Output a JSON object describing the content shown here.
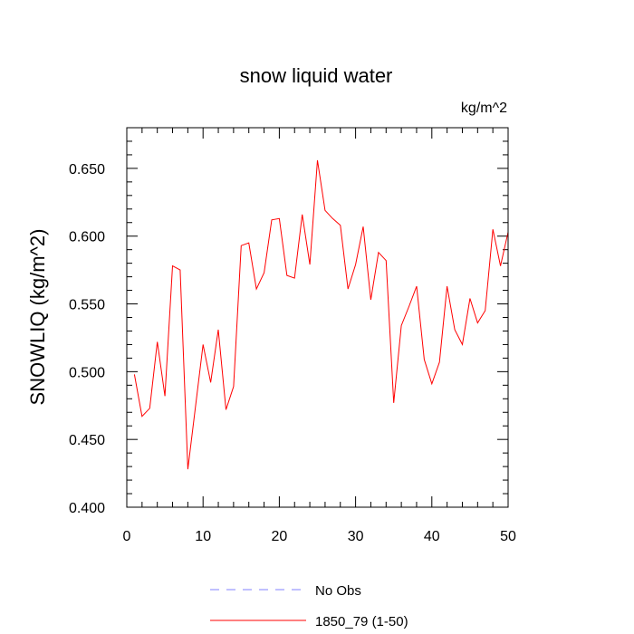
{
  "chart_data": {
    "type": "line",
    "title": "snow liquid water",
    "units": "kg/m^2",
    "ylabel": "SNOWLIQ  (kg/m^2)",
    "xlabel": "",
    "xlim": [
      0,
      50
    ],
    "ylim": [
      0.4,
      0.68
    ],
    "xticks": [
      0,
      10,
      20,
      30,
      40,
      50
    ],
    "xtick_labels": [
      "0",
      "10",
      "20",
      "30",
      "40",
      "50"
    ],
    "yticks": [
      0.4,
      0.45,
      0.5,
      0.55,
      0.6,
      0.65
    ],
    "ytick_labels": [
      "0.400",
      "0.450",
      "0.500",
      "0.550",
      "0.600",
      "0.650"
    ],
    "grid": false,
    "legend_position": "bottom-center",
    "legend": [
      {
        "label": "No Obs",
        "color": "#8080ff",
        "style": "dashed"
      },
      {
        "label": "1850_79 (1-50)",
        "color": "#ff0000",
        "style": "solid"
      }
    ],
    "series": [
      {
        "name": "1850_79 (1-50)",
        "color": "#ff0000",
        "x": [
          1,
          2,
          3,
          4,
          5,
          6,
          7,
          8,
          9,
          10,
          11,
          12,
          13,
          14,
          15,
          16,
          17,
          18,
          19,
          20,
          21,
          22,
          23,
          24,
          25,
          26,
          27,
          28,
          29,
          30,
          31,
          32,
          33,
          34,
          35,
          36,
          37,
          38,
          39,
          40,
          41,
          42,
          43,
          44,
          45,
          46,
          47,
          48,
          49,
          50
        ],
        "y": [
          0.498,
          0.467,
          0.473,
          0.522,
          0.482,
          0.578,
          0.575,
          0.428,
          0.474,
          0.52,
          0.492,
          0.531,
          0.472,
          0.489,
          0.593,
          0.595,
          0.561,
          0.573,
          0.612,
          0.613,
          0.571,
          0.569,
          0.616,
          0.579,
          0.656,
          0.619,
          0.613,
          0.608,
          0.561,
          0.579,
          0.607,
          0.553,
          0.588,
          0.582,
          0.477,
          0.534,
          0.548,
          0.563,
          0.509,
          0.491,
          0.507,
          0.563,
          0.531,
          0.52,
          0.554,
          0.536,
          0.545,
          0.605,
          0.578,
          0.603
        ]
      }
    ]
  }
}
